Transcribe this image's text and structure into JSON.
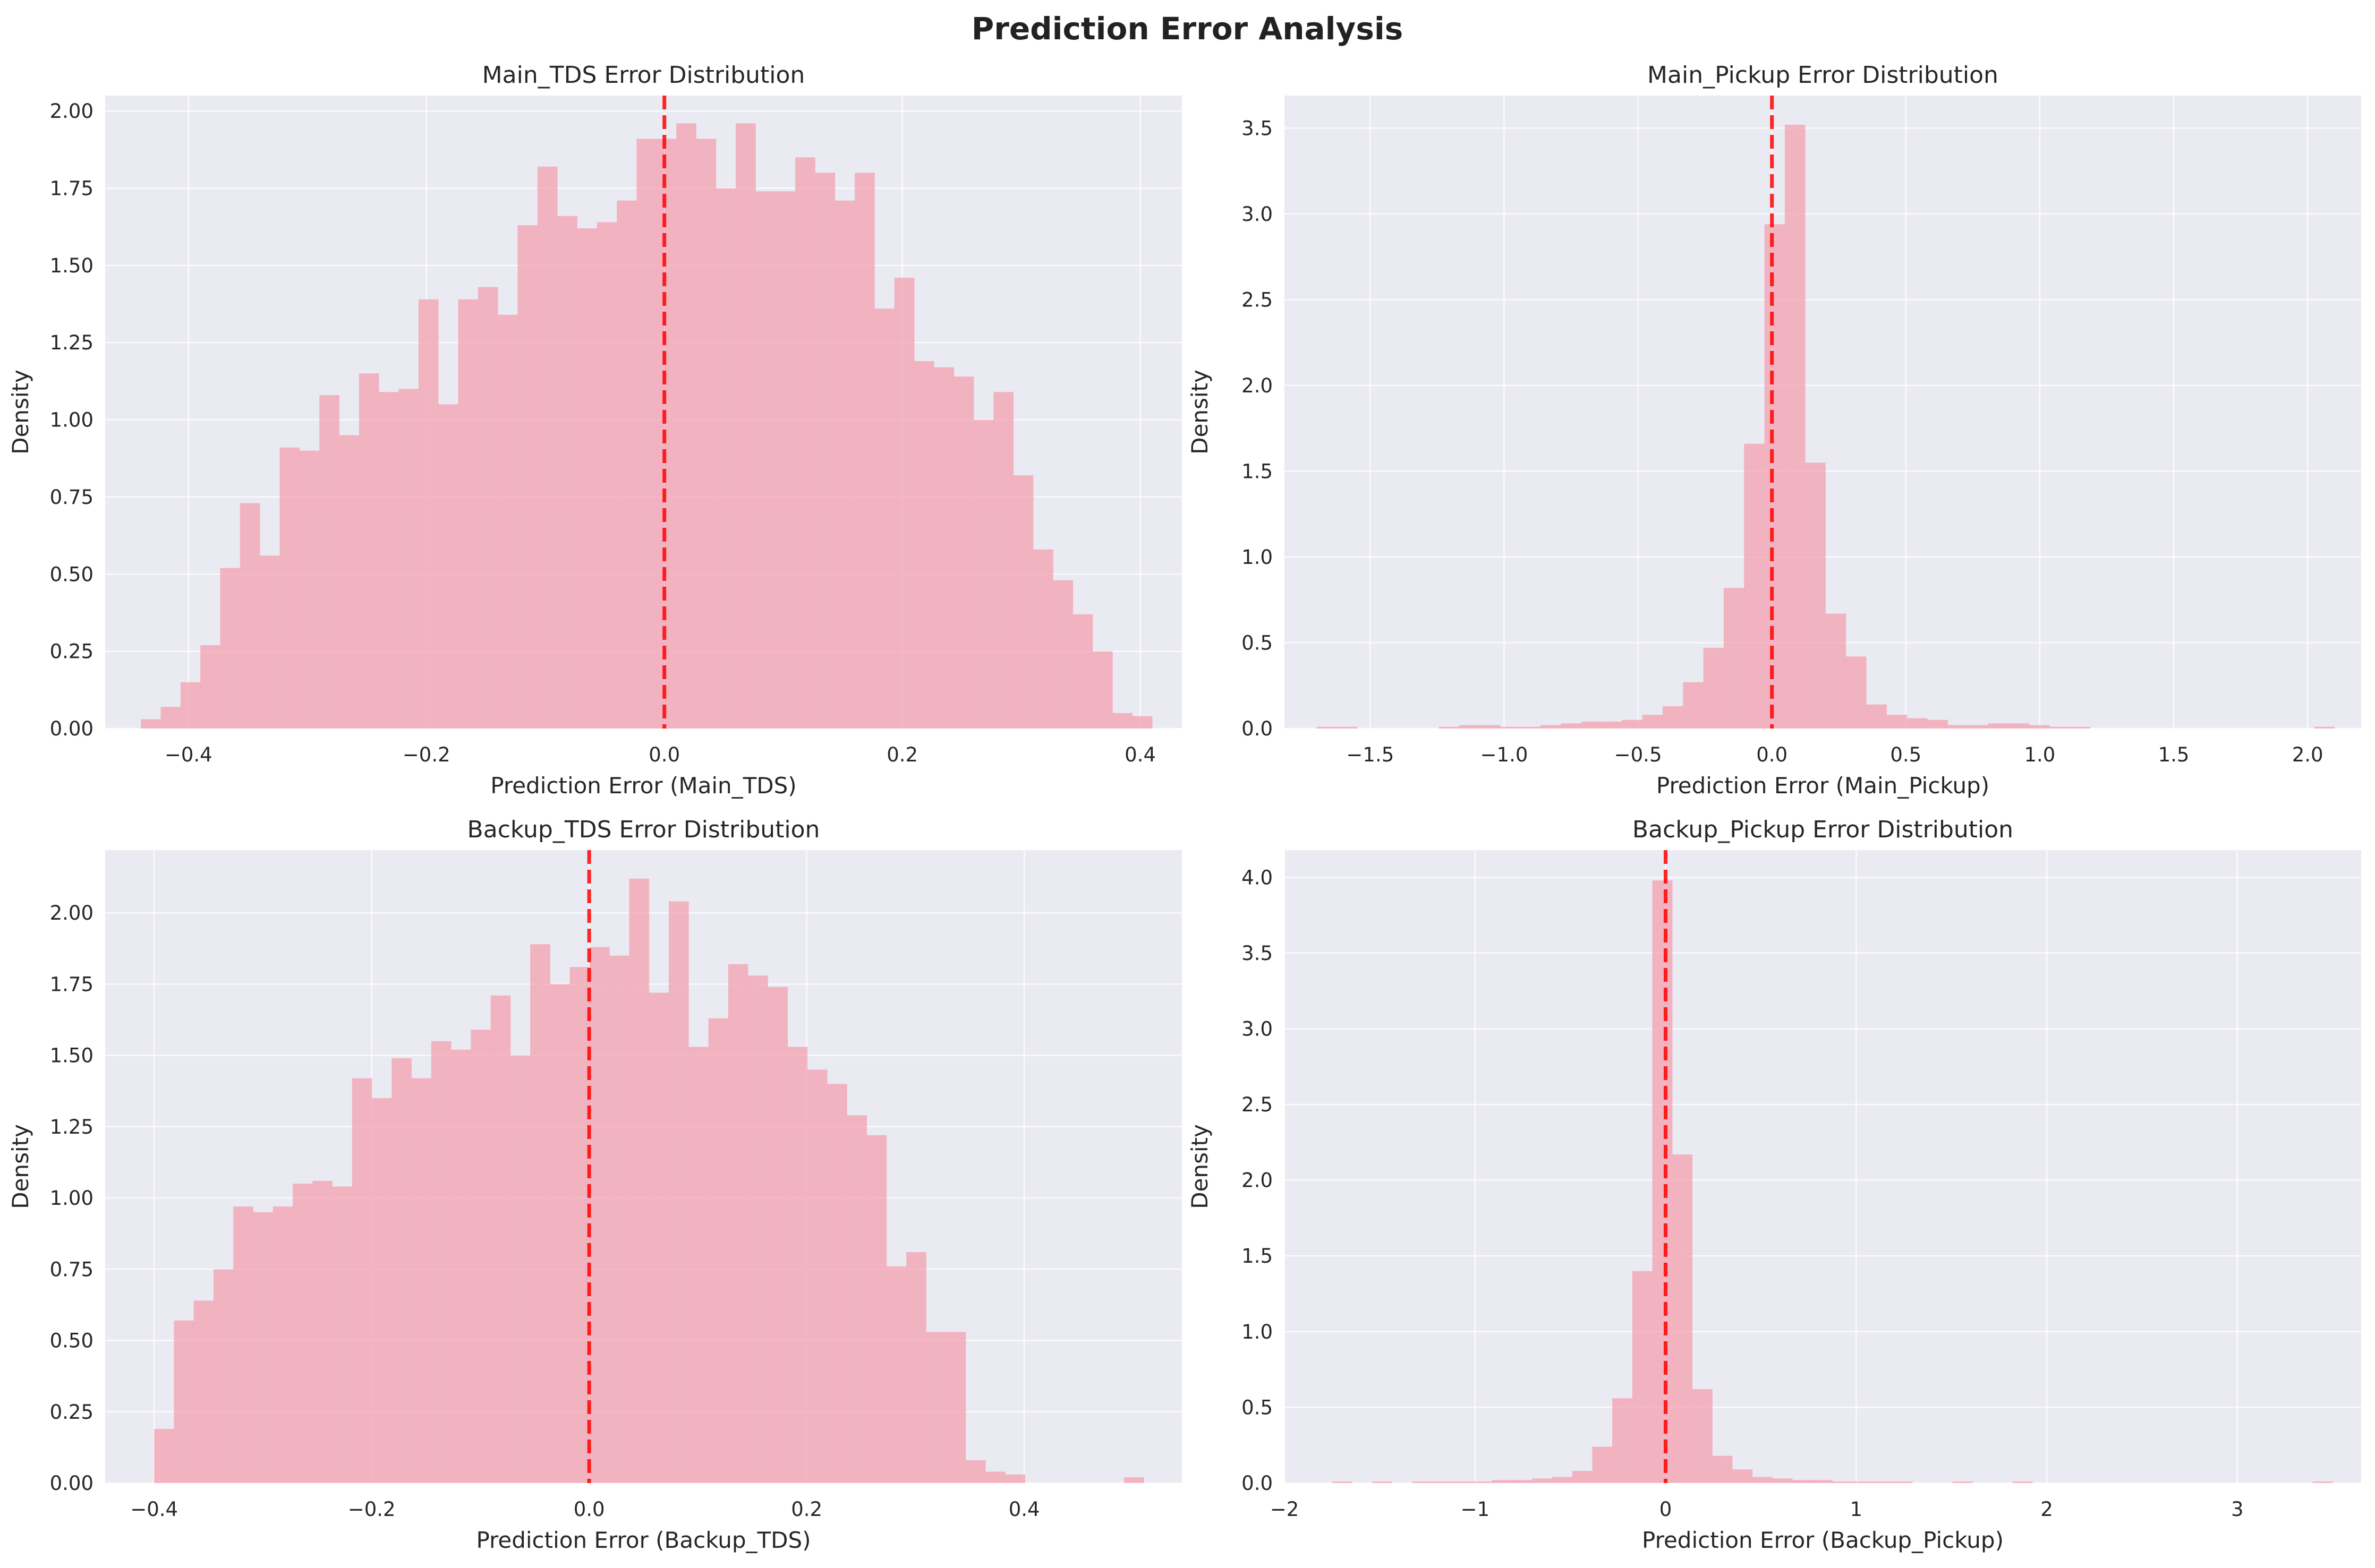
{
  "suptitle": "Prediction Error Analysis",
  "colors": {
    "background": "#ffffff",
    "plot_bg": "#eaeaf2",
    "grid": "#ffffff",
    "bar": "#f4a0b0",
    "bar_alpha": 0.75,
    "zero_line": "#ff0000"
  },
  "chart_data": [
    {
      "type": "histogram",
      "title": "Main_TDS Error Distribution",
      "xlabel": "Prediction Error (Main_TDS)",
      "ylabel": "Density",
      "xlim": [
        -0.47,
        0.435
      ],
      "ylim": [
        0,
        2.05
      ],
      "xticks": [
        -0.4,
        -0.2,
        0.0,
        0.2,
        0.4
      ],
      "xtick_labels": [
        "−0.4",
        "−0.2",
        "0.0",
        "0.2",
        "0.4"
      ],
      "yticks": [
        0,
        0.25,
        0.5,
        0.75,
        1.0,
        1.25,
        1.5,
        1.75,
        2.0
      ],
      "ytick_labels": [
        "0.00",
        "0.25",
        "0.50",
        "0.75",
        "1.00",
        "1.25",
        "1.50",
        "1.75",
        "2.00"
      ],
      "zero_line": 0.0,
      "bin_start": -0.44,
      "bin_end": 0.41,
      "values": [
        0.03,
        0.07,
        0.15,
        0.27,
        0.52,
        0.73,
        0.56,
        0.91,
        0.9,
        1.08,
        0.95,
        1.15,
        1.09,
        1.1,
        1.39,
        1.05,
        1.39,
        1.43,
        1.34,
        1.63,
        1.82,
        1.66,
        1.62,
        1.64,
        1.71,
        1.91,
        1.91,
        1.96,
        1.91,
        1.75,
        1.96,
        1.74,
        1.74,
        1.85,
        1.8,
        1.71,
        1.8,
        1.36,
        1.46,
        1.19,
        1.17,
        1.14,
        1.0,
        1.09,
        0.82,
        0.58,
        0.48,
        0.37,
        0.25,
        0.05,
        0.04
      ]
    },
    {
      "type": "histogram",
      "title": "Main_Pickup Error Distribution",
      "xlabel": "Prediction Error (Main_Pickup)",
      "ylabel": "Density",
      "xlim": [
        -1.82,
        2.2
      ],
      "ylim": [
        0,
        3.69
      ],
      "xticks": [
        -1.5,
        -1.0,
        -0.5,
        0.0,
        0.5,
        1.0,
        1.5,
        2.0
      ],
      "xtick_labels": [
        "−1.5",
        "−1.0",
        "−0.5",
        "0.0",
        "0.5",
        "1.0",
        "1.5",
        "2.0"
      ],
      "yticks": [
        0,
        0.5,
        1.0,
        1.5,
        2.0,
        2.5,
        3.0,
        3.5
      ],
      "ytick_labels": [
        "0.0",
        "0.5",
        "1.0",
        "1.5",
        "2.0",
        "2.5",
        "3.0",
        "3.5"
      ],
      "zero_line": 0.0,
      "bin_start": -1.7,
      "bin_end": 2.1,
      "values": [
        0.01,
        0.01,
        0.0,
        0.0,
        0.0,
        0.0,
        0.01,
        0.02,
        0.02,
        0.01,
        0.01,
        0.02,
        0.03,
        0.04,
        0.04,
        0.05,
        0.08,
        0.13,
        0.27,
        0.47,
        0.82,
        1.66,
        2.94,
        3.52,
        1.55,
        0.67,
        0.42,
        0.14,
        0.08,
        0.06,
        0.05,
        0.02,
        0.02,
        0.03,
        0.03,
        0.02,
        0.01,
        0.01,
        0.0,
        0.0,
        0.0,
        0.0,
        0.0,
        0.0,
        0.0,
        0.0,
        0.0,
        0.0,
        0.0,
        0.01
      ]
    },
    {
      "type": "histogram",
      "title": "Backup_TDS Error Distribution",
      "xlabel": "Prediction Error (Backup_TDS)",
      "ylabel": "Density",
      "xlim": [
        -0.445,
        0.545
      ],
      "ylim": [
        0,
        2.22
      ],
      "xticks": [
        -0.4,
        -0.2,
        0.0,
        0.2,
        0.4
      ],
      "xtick_labels": [
        "−0.4",
        "−0.2",
        "0.0",
        "0.2",
        "0.4"
      ],
      "yticks": [
        0,
        0.25,
        0.5,
        0.75,
        1.0,
        1.25,
        1.5,
        1.75,
        2.0
      ],
      "ytick_labels": [
        "0.00",
        "0.25",
        "0.50",
        "0.75",
        "1.00",
        "1.25",
        "1.50",
        "1.75",
        "2.00"
      ],
      "zero_line": 0.0,
      "bin_start": -0.4,
      "bin_end": 0.51,
      "values": [
        0.19,
        0.57,
        0.64,
        0.75,
        0.97,
        0.95,
        0.97,
        1.05,
        1.06,
        1.04,
        1.42,
        1.35,
        1.49,
        1.42,
        1.55,
        1.52,
        1.59,
        1.71,
        1.5,
        1.89,
        1.75,
        1.81,
        1.88,
        1.85,
        2.12,
        1.72,
        2.04,
        1.53,
        1.63,
        1.82,
        1.78,
        1.74,
        1.53,
        1.45,
        1.4,
        1.29,
        1.22,
        0.76,
        0.81,
        0.53,
        0.53,
        0.08,
        0.04,
        0.03,
        0.0,
        0.0,
        0.0,
        0.0,
        0.0,
        0.02
      ]
    },
    {
      "type": "histogram",
      "title": "Backup_Pickup Error Distribution",
      "xlabel": "Prediction Error (Backup_Pickup)",
      "ylabel": "Density",
      "xlim": [
        -2.0,
        3.65
      ],
      "ylim": [
        0,
        4.18
      ],
      "xticks": [
        -2,
        -1,
        0,
        1,
        2,
        3
      ],
      "xtick_labels": [
        "−2",
        "−1",
        "0",
        "1",
        "2",
        "3"
      ],
      "yticks": [
        0,
        0.5,
        1.0,
        1.5,
        2.0,
        2.5,
        3.0,
        3.5,
        4.0
      ],
      "ytick_labels": [
        "0.0",
        "0.5",
        "1.0",
        "1.5",
        "2.0",
        "2.5",
        "3.0",
        "3.5",
        "4.0"
      ],
      "zero_line": 0.0,
      "bin_start": -1.75,
      "bin_end": 3.5,
      "values": [
        0.01,
        0.0,
        0.01,
        0.0,
        0.01,
        0.01,
        0.01,
        0.01,
        0.02,
        0.02,
        0.03,
        0.04,
        0.08,
        0.24,
        0.56,
        1.4,
        3.98,
        2.17,
        0.62,
        0.18,
        0.09,
        0.04,
        0.03,
        0.02,
        0.02,
        0.01,
        0.01,
        0.01,
        0.01,
        0.0,
        0.0,
        0.01,
        0.0,
        0.0,
        0.01,
        0.0,
        0.0,
        0.0,
        0.0,
        0.0,
        0.0,
        0.0,
        0.0,
        0.0,
        0.0,
        0.0,
        0.0,
        0.0,
        0.0,
        0.01
      ]
    }
  ]
}
